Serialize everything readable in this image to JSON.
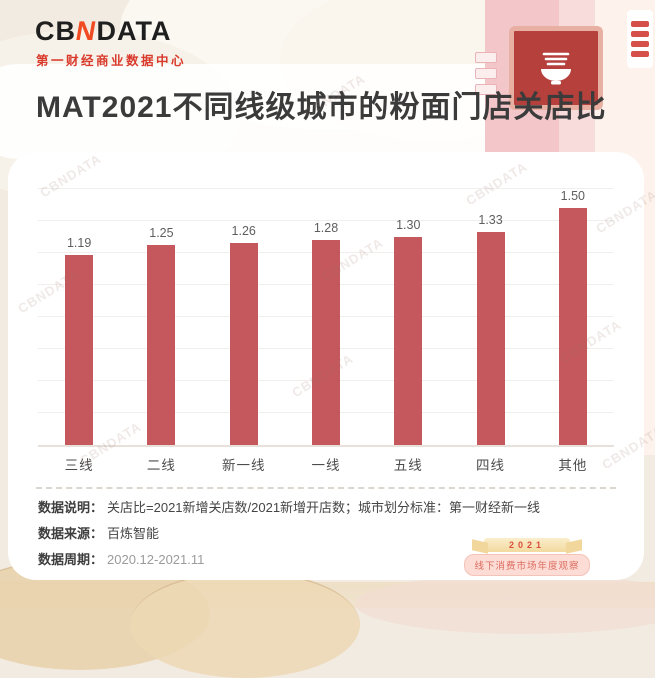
{
  "brand": {
    "logo_prefix": "CB",
    "logo_accent": "N",
    "logo_suffix": "DATA",
    "tagline": "第一财经商业数据中心"
  },
  "title": "MAT2021不同线级城市的粉面门店关店比",
  "chart_data": {
    "type": "bar",
    "title": "MAT2021不同线级城市的粉面门店关店比",
    "categories": [
      "三线",
      "二线",
      "新一线",
      "一线",
      "五线",
      "四线",
      "其他"
    ],
    "values": [
      1.19,
      1.25,
      1.26,
      1.28,
      1.3,
      1.33,
      1.5
    ],
    "value_labels": [
      "1.19",
      "1.25",
      "1.26",
      "1.28",
      "1.30",
      "1.33",
      "1.50"
    ],
    "xlabel": "",
    "ylabel": "",
    "ylim": [
      0,
      1.6
    ],
    "grid_step": 0.2,
    "grid": true,
    "legend": false,
    "bar_color": "#c5585c"
  },
  "footer": {
    "rows": [
      {
        "label": "数据说明：",
        "value": "关店比=2021新增关店数/2021新增开店数；城市划分标准：第一财经新一线",
        "muted": false
      },
      {
        "label": "数据来源：",
        "value": "百炼智能",
        "muted": false
      },
      {
        "label": "数据周期：",
        "value": "2020.12-2021.11",
        "muted": true
      }
    ]
  },
  "badge": {
    "year": "2021",
    "text": "线下消费市场年度观察"
  },
  "watermark": "CBNDATA",
  "colors": {
    "bar": "#c5585c",
    "logo_accent": "#f04b23",
    "tagline_red": "#d93a2c",
    "background": "#f2ebe1",
    "card": "#ffffff"
  }
}
